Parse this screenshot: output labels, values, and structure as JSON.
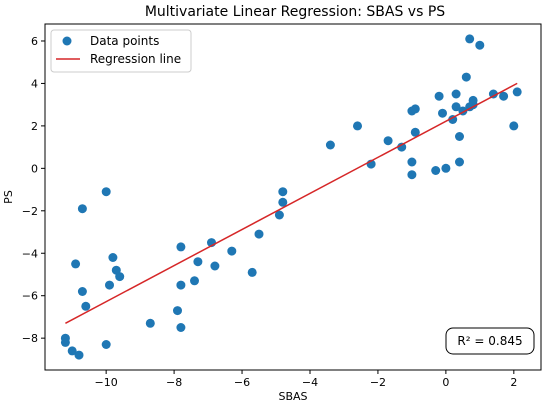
{
  "chart_data": {
    "type": "scatter",
    "title": "Multivariate Linear Regression: SBAS vs PS",
    "xlabel": "SBAS",
    "ylabel": "PS",
    "xlim": [
      -11.8,
      2.8
    ],
    "ylim": [
      -9.5,
      6.8
    ],
    "xticks": [
      -10,
      -8,
      -6,
      -4,
      -2,
      0,
      2
    ],
    "yticks": [
      -8,
      -6,
      -4,
      -2,
      0,
      2,
      4,
      6
    ],
    "grid": false,
    "legend_placement": "top-left",
    "series": [
      {
        "name": "Data points",
        "kind": "scatter",
        "color": "#1f77b4",
        "points": [
          [
            -11.2,
            -8.0
          ],
          [
            -11.2,
            -8.2
          ],
          [
            -11.0,
            -8.6
          ],
          [
            -10.8,
            -8.8
          ],
          [
            -10.6,
            -6.5
          ],
          [
            -10.7,
            -5.8
          ],
          [
            -10.9,
            -4.5
          ],
          [
            -10.7,
            -1.9
          ],
          [
            -10.0,
            -1.1
          ],
          [
            -10.0,
            -8.3
          ],
          [
            -9.9,
            -5.5
          ],
          [
            -9.8,
            -4.2
          ],
          [
            -9.7,
            -4.8
          ],
          [
            -9.6,
            -5.1
          ],
          [
            -8.7,
            -7.3
          ],
          [
            -7.9,
            -6.7
          ],
          [
            -7.8,
            -7.5
          ],
          [
            -7.8,
            -5.5
          ],
          [
            -7.8,
            -3.7
          ],
          [
            -7.4,
            -5.3
          ],
          [
            -7.3,
            -4.4
          ],
          [
            -6.9,
            -3.5
          ],
          [
            -6.8,
            -4.6
          ],
          [
            -6.3,
            -3.9
          ],
          [
            -5.7,
            -4.9
          ],
          [
            -5.5,
            -3.1
          ],
          [
            -4.9,
            -2.2
          ],
          [
            -4.8,
            -1.6
          ],
          [
            -4.8,
            -1.1
          ],
          [
            -3.4,
            1.1
          ],
          [
            -2.6,
            2.0
          ],
          [
            -2.2,
            0.2
          ],
          [
            -1.7,
            1.3
          ],
          [
            -1.3,
            1.0
          ],
          [
            -1.0,
            0.3
          ],
          [
            -1.0,
            -0.3
          ],
          [
            -1.0,
            2.7
          ],
          [
            -0.9,
            2.8
          ],
          [
            -0.9,
            1.7
          ],
          [
            -0.3,
            -0.1
          ],
          [
            -0.2,
            3.4
          ],
          [
            -0.1,
            2.6
          ],
          [
            0.0,
            0.0
          ],
          [
            0.2,
            2.3
          ],
          [
            0.3,
            3.5
          ],
          [
            0.3,
            2.9
          ],
          [
            0.4,
            1.5
          ],
          [
            0.4,
            0.3
          ],
          [
            0.5,
            2.7
          ],
          [
            0.6,
            4.3
          ],
          [
            0.7,
            6.1
          ],
          [
            0.7,
            2.9
          ],
          [
            0.8,
            3.0
          ],
          [
            0.8,
            3.2
          ],
          [
            1.0,
            5.8
          ],
          [
            1.4,
            3.5
          ],
          [
            1.7,
            3.4
          ],
          [
            2.0,
            2.0
          ],
          [
            2.1,
            3.6
          ]
        ]
      },
      {
        "name": "Regression line",
        "kind": "line",
        "color": "#d62728",
        "points": [
          [
            -11.2,
            -7.3
          ],
          [
            2.1,
            4.0
          ]
        ]
      }
    ],
    "annotation": "R² = 0.845"
  }
}
